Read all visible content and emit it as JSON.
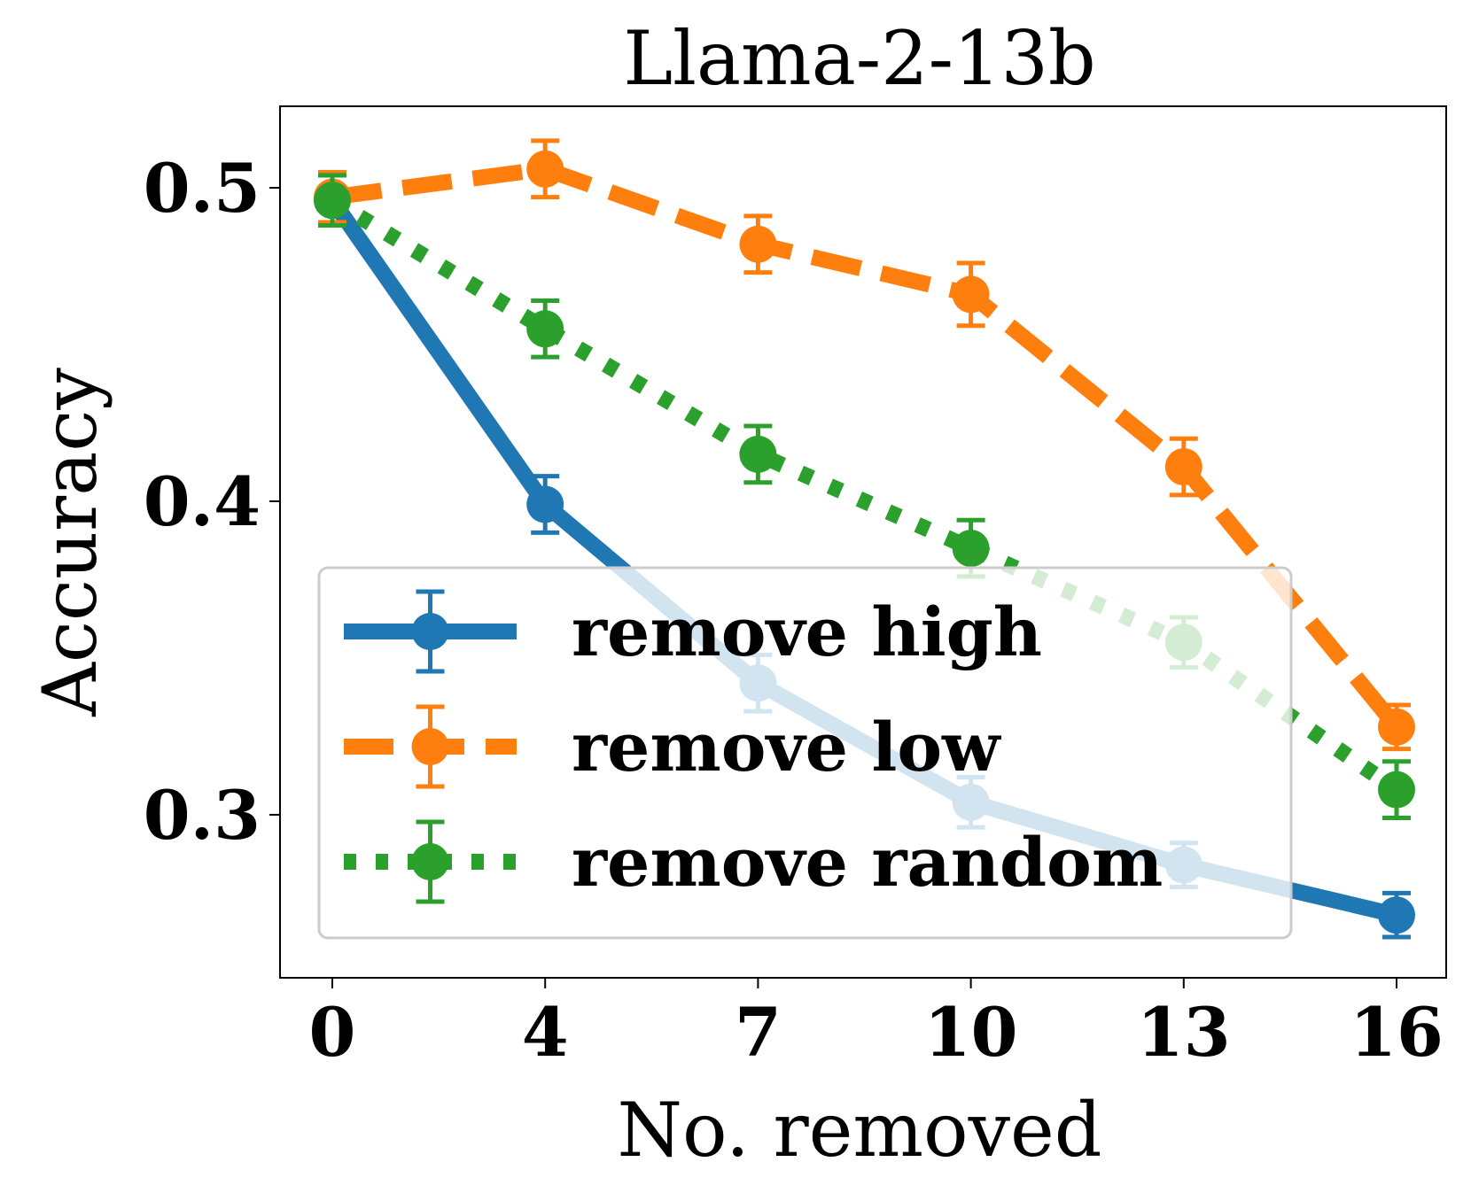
{
  "chart_data": {
    "type": "line",
    "title": "Llama-2-13b",
    "xlabel": "No. removed",
    "ylabel": "Accuracy",
    "x": [
      0,
      4,
      7,
      10,
      13,
      16
    ],
    "x_tick_labels": [
      "0",
      "4",
      "7",
      "10",
      "13",
      "16"
    ],
    "y_ticks": [
      0.3,
      0.4,
      0.5
    ],
    "y_tick_labels": [
      "0.3",
      "0.4",
      "0.5"
    ],
    "ylim": [
      0.248,
      0.526
    ],
    "grid": false,
    "legend_position": "lower-left",
    "series": [
      {
        "name": "remove high",
        "color": "#1f77b4",
        "linestyle": "solid",
        "values": [
          0.496,
          0.399,
          0.342,
          0.304,
          0.284,
          0.268
        ],
        "errors": [
          0.008,
          0.009,
          0.009,
          0.008,
          0.007,
          0.007
        ]
      },
      {
        "name": "remove low",
        "color": "#ff7f0e",
        "linestyle": "dashed",
        "values": [
          0.497,
          0.506,
          0.482,
          0.466,
          0.411,
          0.328
        ],
        "errors": [
          0.008,
          0.009,
          0.009,
          0.01,
          0.009,
          0.007
        ]
      },
      {
        "name": "remove random",
        "color": "#2ca02c",
        "linestyle": "dotted",
        "values": [
          0.496,
          0.455,
          0.415,
          0.385,
          0.355,
          0.308
        ],
        "errors": [
          0.008,
          0.009,
          0.009,
          0.009,
          0.008,
          0.009
        ]
      }
    ]
  }
}
